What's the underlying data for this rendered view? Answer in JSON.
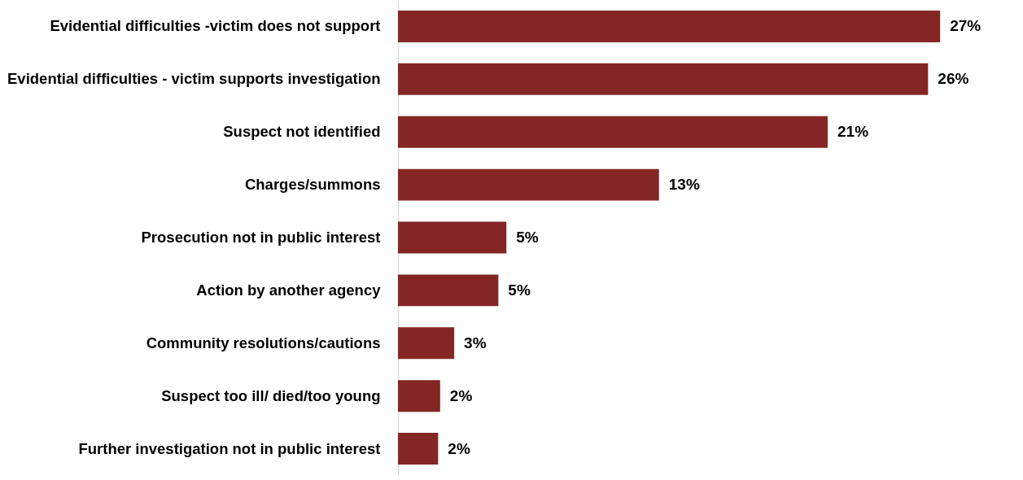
{
  "chart_data": {
    "type": "bar",
    "orientation": "horizontal",
    "categories": [
      "Evidential difficulties -victim does not support",
      "Evidential difficulties - victim supports investigation",
      "Suspect not identified",
      "Charges/summons",
      "Prosecution not in public interest",
      "Action by another agency",
      "Community resolutions/cautions",
      "Suspect too ill/ died/too young",
      "Further investigation not in public interest"
    ],
    "values": [
      27,
      26.4,
      21.4,
      13,
      5.4,
      5,
      2.8,
      2.1,
      2
    ],
    "value_labels": [
      "27%",
      "26%",
      "21%",
      "13%",
      "5%",
      "5%",
      "3%",
      "2%",
      "2%"
    ],
    "color": "#842724"
  }
}
